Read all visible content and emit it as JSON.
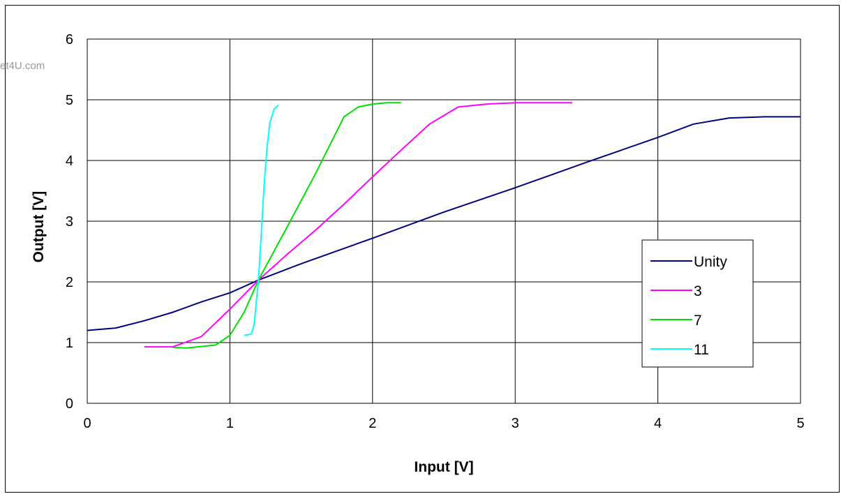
{
  "watermark": "et4U.com",
  "chart_data": {
    "type": "line",
    "xlabel": "Input [V]",
    "ylabel": "Output [V]",
    "xlim": [
      0,
      5
    ],
    "ylim": [
      0,
      6
    ],
    "xticks": [
      "0",
      "1",
      "2",
      "3",
      "4",
      "5"
    ],
    "yticks": [
      "0",
      "1",
      "2",
      "3",
      "4",
      "5",
      "6"
    ],
    "grid": true,
    "legend_position": "right",
    "series": [
      {
        "name": "Unity",
        "color": "#000080",
        "points": [
          [
            0,
            1.2
          ],
          [
            0.2,
            1.24
          ],
          [
            0.4,
            1.36
          ],
          [
            0.6,
            1.5
          ],
          [
            0.8,
            1.67
          ],
          [
            1.0,
            1.82
          ],
          [
            1.2,
            2.03
          ],
          [
            1.5,
            2.3
          ],
          [
            2.0,
            2.72
          ],
          [
            2.5,
            3.15
          ],
          [
            3.0,
            3.55
          ],
          [
            3.5,
            3.97
          ],
          [
            4.0,
            4.38
          ],
          [
            4.25,
            4.6
          ],
          [
            4.5,
            4.7
          ],
          [
            4.75,
            4.72
          ],
          [
            5.0,
            4.72
          ]
        ]
      },
      {
        "name": "3",
        "color": "#ff00ff",
        "points": [
          [
            0.4,
            0.93
          ],
          [
            0.6,
            0.93
          ],
          [
            0.8,
            1.1
          ],
          [
            1.0,
            1.55
          ],
          [
            1.2,
            2.03
          ],
          [
            1.4,
            2.45
          ],
          [
            1.6,
            2.85
          ],
          [
            1.8,
            3.28
          ],
          [
            2.0,
            3.73
          ],
          [
            2.2,
            4.17
          ],
          [
            2.4,
            4.6
          ],
          [
            2.6,
            4.88
          ],
          [
            2.8,
            4.93
          ],
          [
            3.0,
            4.95
          ],
          [
            3.4,
            4.95
          ]
        ]
      },
      {
        "name": "7",
        "color": "#00e000",
        "points": [
          [
            0.6,
            0.92
          ],
          [
            0.7,
            0.91
          ],
          [
            0.9,
            0.96
          ],
          [
            1.0,
            1.12
          ],
          [
            1.1,
            1.5
          ],
          [
            1.2,
            2.03
          ],
          [
            1.4,
            2.9
          ],
          [
            1.6,
            3.78
          ],
          [
            1.8,
            4.72
          ],
          [
            1.9,
            4.88
          ],
          [
            2.0,
            4.93
          ],
          [
            2.1,
            4.95
          ],
          [
            2.2,
            4.95
          ]
        ]
      },
      {
        "name": "11",
        "color": "#00ffff",
        "points": [
          [
            1.1,
            1.12
          ],
          [
            1.15,
            1.14
          ],
          [
            1.17,
            1.3
          ],
          [
            1.2,
            2.03
          ],
          [
            1.22,
            2.8
          ],
          [
            1.24,
            3.6
          ],
          [
            1.26,
            4.2
          ],
          [
            1.28,
            4.62
          ],
          [
            1.31,
            4.85
          ],
          [
            1.34,
            4.91
          ]
        ]
      }
    ]
  }
}
